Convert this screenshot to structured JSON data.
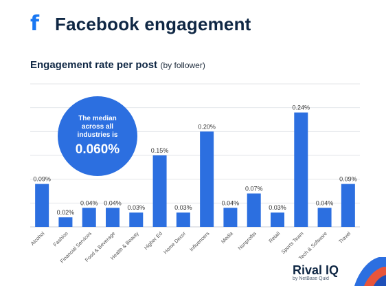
{
  "header": {
    "icon": "facebook-f-icon",
    "title": "Facebook engagement"
  },
  "subtitle": {
    "main": "Engagement rate per post",
    "note": "(by follower)"
  },
  "callout": {
    "text": "The median across all industries is",
    "value": "0.060%"
  },
  "brand": {
    "name": "Rival IQ",
    "sub": "by NetBase Quid"
  },
  "colors": {
    "bar": "#2c6fe0",
    "title": "#0f2744",
    "facebook": "#1877f2"
  },
  "chart_data": {
    "type": "bar",
    "categories": [
      "Alcohol",
      "Fashion",
      "Financial Services",
      "Food & Beverage",
      "Health & Beauty",
      "Higher Ed",
      "Home Decor",
      "Influencers",
      "Media",
      "Nonprofits",
      "Retail",
      "Sports Team",
      "Tech & Software",
      "Travel"
    ],
    "values": [
      0.09,
      0.02,
      0.04,
      0.04,
      0.03,
      0.15,
      0.03,
      0.2,
      0.04,
      0.07,
      0.03,
      0.24,
      0.04,
      0.09
    ],
    "labels": [
      "0.09%",
      "0.02%",
      "0.04%",
      "0.04%",
      "0.03%",
      "0.15%",
      "0.03%",
      "0.20%",
      "0.04%",
      "0.07%",
      "0.03%",
      "0.24%",
      "0.04%",
      "0.09%"
    ],
    "title": "Engagement rate per post",
    "xlabel": "",
    "ylabel": "",
    "ylim": [
      0,
      0.3
    ],
    "grid": true,
    "legend": "none"
  }
}
